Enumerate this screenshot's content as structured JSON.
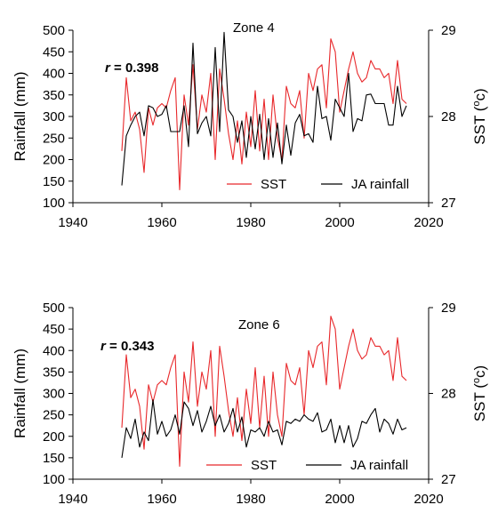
{
  "colors": {
    "sst": "#e8282b",
    "rainfall": "#000000",
    "axis": "#000000"
  },
  "chart_data": [
    {
      "type": "line",
      "zone_label": "Zone 4",
      "correlation_prefix": "r",
      "correlation_text": " = 0.398",
      "xlabel": "",
      "ylabel_left": "Rainfall (mm)",
      "ylabel_right_main": "SST (",
      "ylabel_right_sup": "o",
      "ylabel_right_end": "c)",
      "xlim": [
        1940,
        2020
      ],
      "ylim_left": [
        100,
        500
      ],
      "ylim_right": [
        27,
        29
      ],
      "x_ticks": [
        "1940",
        "1960",
        "1980",
        "2000",
        "2020"
      ],
      "y_ticks_left": [
        "100",
        "150",
        "200",
        "250",
        "300",
        "350",
        "400",
        "450",
        "500"
      ],
      "y_ticks_right": [
        "27",
        "28",
        "29"
      ],
      "legend_position": "bottom-right",
      "years": [
        1951,
        1952,
        1953,
        1954,
        1955,
        1956,
        1957,
        1958,
        1959,
        1960,
        1961,
        1962,
        1963,
        1964,
        1965,
        1966,
        1967,
        1968,
        1969,
        1970,
        1971,
        1972,
        1973,
        1974,
        1975,
        1976,
        1977,
        1978,
        1979,
        1980,
        1981,
        1982,
        1983,
        1984,
        1985,
        1986,
        1987,
        1988,
        1989,
        1990,
        1991,
        1992,
        1993,
        1994,
        1995,
        1996,
        1997,
        1998,
        1999,
        2000,
        2001,
        2002,
        2003,
        2004,
        2005,
        2006,
        2007,
        2008,
        2009,
        2010,
        2011,
        2012,
        2013,
        2014,
        2015
      ],
      "series": [
        {
          "name": "SST",
          "axis": "right",
          "values": [
            27.6,
            28.45,
            27.95,
            28.05,
            27.85,
            27.35,
            28.1,
            27.9,
            28.1,
            28.15,
            28.1,
            28.3,
            28.45,
            27.15,
            28.25,
            27.9,
            28.6,
            27.85,
            28.25,
            28.05,
            28.5,
            27.5,
            28.55,
            28.2,
            27.8,
            27.5,
            27.95,
            27.45,
            28.05,
            27.65,
            28.3,
            27.6,
            28.2,
            27.5,
            28.25,
            27.75,
            27.5,
            28.35,
            28.15,
            28.1,
            28.3,
            27.75,
            28.5,
            28.3,
            28.55,
            28.6,
            28.1,
            28.9,
            28.75,
            28.05,
            28.3,
            28.55,
            28.75,
            28.5,
            28.4,
            28.45,
            28.65,
            28.55,
            28.55,
            28.45,
            28.5,
            28.15,
            28.65,
            28.2,
            28.15
          ]
        },
        {
          "name": "JA rainfall",
          "axis": "left",
          "values": [
            140,
            255,
            280,
            300,
            310,
            255,
            325,
            320,
            300,
            305,
            325,
            265,
            265,
            265,
            325,
            230,
            470,
            260,
            285,
            300,
            255,
            460,
            265,
            495,
            315,
            300,
            240,
            290,
            205,
            300,
            225,
            305,
            200,
            295,
            205,
            285,
            190,
            280,
            210,
            285,
            305,
            255,
            260,
            240,
            370,
            295,
            300,
            245,
            340,
            320,
            300,
            400,
            265,
            295,
            290,
            350,
            352,
            330,
            330,
            330,
            280,
            280,
            370,
            300,
            325
          ]
        }
      ]
    },
    {
      "type": "line",
      "zone_label": "Zone 6",
      "correlation_prefix": "r",
      "correlation_text": " = 0.343",
      "xlabel": "",
      "ylabel_left": "Rainfall (mm)",
      "ylabel_right_main": "SST (",
      "ylabel_right_sup": "o",
      "ylabel_right_end": "c)",
      "xlim": [
        1940,
        2020
      ],
      "ylim_left": [
        100,
        500
      ],
      "ylim_right": [
        27,
        29
      ],
      "x_ticks": [
        "1940",
        "1960",
        "1980",
        "2000",
        "2020"
      ],
      "y_ticks_left": [
        "100",
        "150",
        "200",
        "250",
        "300",
        "350",
        "400",
        "450",
        "500"
      ],
      "y_ticks_right": [
        "27",
        "28",
        "29"
      ],
      "legend_position": "bottom-right",
      "years": [
        1951,
        1952,
        1953,
        1954,
        1955,
        1956,
        1957,
        1958,
        1959,
        1960,
        1961,
        1962,
        1963,
        1964,
        1965,
        1966,
        1967,
        1968,
        1969,
        1970,
        1971,
        1972,
        1973,
        1974,
        1975,
        1976,
        1977,
        1978,
        1979,
        1980,
        1981,
        1982,
        1983,
        1984,
        1985,
        1986,
        1987,
        1988,
        1989,
        1990,
        1991,
        1992,
        1993,
        1994,
        1995,
        1996,
        1997,
        1998,
        1999,
        2000,
        2001,
        2002,
        2003,
        2004,
        2005,
        2006,
        2007,
        2008,
        2009,
        2010,
        2011,
        2012,
        2013,
        2014,
        2015
      ],
      "series": [
        {
          "name": "SST",
          "axis": "right",
          "values": [
            27.6,
            28.45,
            27.95,
            28.05,
            27.85,
            27.35,
            28.1,
            27.9,
            28.1,
            28.15,
            28.1,
            28.3,
            28.45,
            27.15,
            28.25,
            27.9,
            28.6,
            27.85,
            28.25,
            28.05,
            28.5,
            27.5,
            28.55,
            28.2,
            27.8,
            27.5,
            27.95,
            27.45,
            28.05,
            27.65,
            28.3,
            27.6,
            28.2,
            27.5,
            28.25,
            27.75,
            27.5,
            28.35,
            28.15,
            28.1,
            28.3,
            27.75,
            28.5,
            28.3,
            28.55,
            28.6,
            28.1,
            28.9,
            28.75,
            28.05,
            28.3,
            28.55,
            28.75,
            28.5,
            28.4,
            28.45,
            28.65,
            28.55,
            28.55,
            28.45,
            28.5,
            28.15,
            28.65,
            28.2,
            28.15
          ]
        },
        {
          "name": "JA rainfall",
          "axis": "left",
          "values": [
            150,
            220,
            195,
            240,
            175,
            210,
            190,
            285,
            205,
            235,
            200,
            215,
            250,
            205,
            280,
            265,
            225,
            260,
            210,
            235,
            270,
            225,
            250,
            210,
            230,
            265,
            210,
            245,
            175,
            215,
            210,
            220,
            200,
            235,
            210,
            215,
            180,
            235,
            230,
            240,
            235,
            250,
            240,
            235,
            255,
            210,
            215,
            240,
            185,
            225,
            185,
            225,
            175,
            195,
            235,
            230,
            250,
            265,
            210,
            240,
            230,
            205,
            240,
            215,
            220
          ]
        }
      ]
    }
  ]
}
